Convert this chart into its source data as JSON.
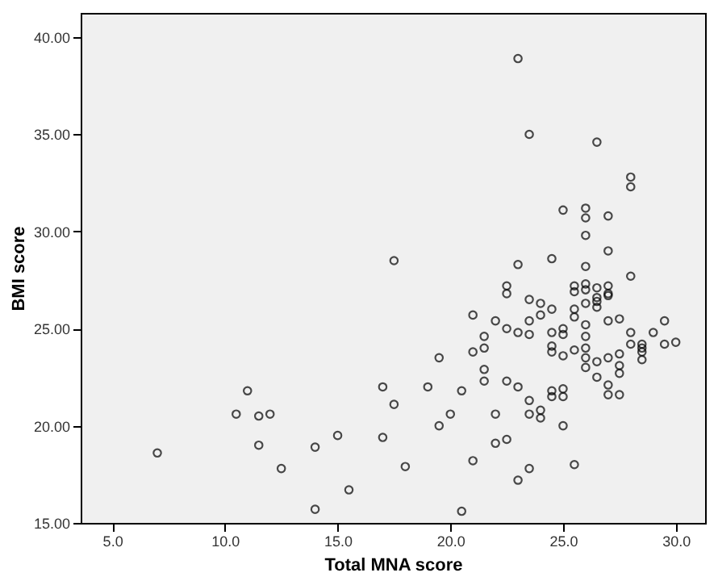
{
  "chart_data": {
    "type": "scatter",
    "xlabel": "Total MNA score",
    "ylabel": "BMI score",
    "xlim": [
      3.6,
      31.3
    ],
    "ylim": [
      15,
      41.25
    ],
    "xticks": [
      {
        "value": 5,
        "label": "5.0"
      },
      {
        "value": 10,
        "label": "10.0"
      },
      {
        "value": 15,
        "label": "15.0"
      },
      {
        "value": 20,
        "label": "20.0"
      },
      {
        "value": 25,
        "label": "25.0"
      },
      {
        "value": 30,
        "label": "30.0"
      }
    ],
    "yticks": [
      {
        "value": 15,
        "label": "15.00"
      },
      {
        "value": 20,
        "label": "20.00"
      },
      {
        "value": 25,
        "label": "25.00"
      },
      {
        "value": 30,
        "label": "30.00"
      },
      {
        "value": 35,
        "label": "35.00"
      },
      {
        "value": 40,
        "label": "40.00"
      }
    ],
    "grid": false,
    "marker": "circle",
    "series": [
      {
        "color": "#000000",
        "x": [
          23,
          23.5,
          26.5,
          28,
          28,
          17.5,
          25,
          26,
          26,
          27,
          26,
          27,
          23,
          24.5,
          26,
          28,
          22.5,
          22.5,
          23.5,
          24,
          26,
          26,
          25.5,
          25.5,
          26.5,
          27,
          27,
          26.5,
          26.5,
          7,
          10.5,
          11,
          11.5,
          12,
          11.5,
          12.5,
          14,
          14,
          15,
          15.5,
          17,
          17,
          17.5,
          18,
          19,
          19.5,
          19.5,
          20,
          20.5,
          20.5,
          21,
          21,
          21,
          21.5,
          21.5,
          21.5,
          21.5,
          22,
          22,
          22,
          22.5,
          22.5,
          22.5,
          23,
          23,
          23,
          23.5,
          23.5,
          23.5,
          23.5,
          23.5,
          24,
          24,
          24,
          24.5,
          24.5,
          24.5,
          24.5,
          24.5,
          24.5,
          25,
          25,
          25,
          25,
          25,
          25,
          25.5,
          25.5,
          25.5,
          25.5,
          26,
          26,
          26,
          26,
          26,
          26,
          26.5,
          26.5,
          26.5,
          27,
          27,
          27,
          27,
          27,
          27.5,
          27.5,
          27.5,
          27.5,
          27.5,
          28,
          28,
          28.5,
          28.5,
          28.5,
          28.5,
          29,
          29.5,
          29.5,
          30
        ],
        "values": [
          38.9,
          35,
          34.6,
          32.8,
          32.3,
          28.5,
          31.1,
          31.2,
          30.7,
          30.8,
          29.8,
          29,
          28.3,
          28.6,
          28.2,
          27.7,
          27.2,
          26.8,
          26.5,
          26.3,
          27.3,
          27,
          27.2,
          26.9,
          27.1,
          27.2,
          26.8,
          26.6,
          26.1,
          18.6,
          20.6,
          21.8,
          20.5,
          20.6,
          19,
          17.8,
          18.9,
          15.7,
          19.5,
          16.7,
          22,
          19.4,
          21.1,
          17.9,
          22,
          23.5,
          20,
          20.6,
          21.8,
          15.6,
          25.7,
          23.8,
          18.2,
          24.6,
          24,
          22.9,
          22.3,
          25.4,
          20.6,
          19.1,
          25,
          22.3,
          19.3,
          24.8,
          22,
          17.2,
          25.4,
          24.7,
          21.3,
          20.6,
          17.8,
          25.7,
          20.8,
          20.4,
          26,
          24.8,
          24.1,
          23.8,
          21.8,
          21.5,
          25,
          24.7,
          23.6,
          21.9,
          21.5,
          20,
          26,
          25.6,
          23.9,
          18,
          25.2,
          24.6,
          24,
          23.5,
          23,
          26.3,
          26.4,
          23.3,
          22.5,
          25.4,
          23.5,
          22.1,
          21.6,
          26.7,
          25.5,
          23.7,
          23.1,
          22.7,
          21.6,
          24.8,
          24.2,
          24.2,
          24,
          23.8,
          23.4,
          24.8,
          25.4,
          24.2,
          24.3
        ]
      }
    ]
  }
}
